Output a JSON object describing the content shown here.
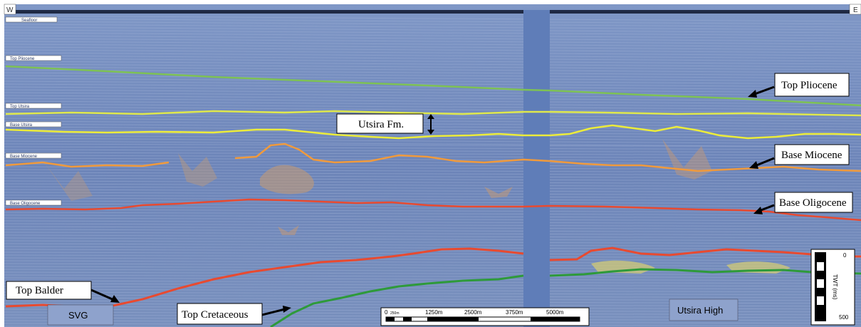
{
  "orientation": {
    "west": "W",
    "east": "E"
  },
  "horizon_tags": [
    "Seafloor",
    "Top Pliocene",
    "Top Utsira",
    "Base Utsira",
    "Base Miocene",
    "Base Oligocene"
  ],
  "callouts": {
    "top_pliocene": "Top Pliocene",
    "utsira_fm": "Utsira Fm.",
    "base_miocene": "Base Miocene",
    "base_oligocene": "Base Oligocene",
    "top_balder": "Top Balder",
    "top_cretaceous": "Top Cretaceous"
  },
  "area_labels": {
    "svg": "SVG",
    "utsira_high": "Utsira High"
  },
  "distance_scale": {
    "ticks": [
      "0",
      "250m",
      "1250m",
      "2500m",
      "3750m",
      "5000m"
    ]
  },
  "twt_scale": {
    "top": "0",
    "bottom": "500",
    "label": "TWT (ms)"
  },
  "colors": {
    "seismic_bg": "#6f86b9",
    "green_horizon": "#7ec254",
    "yellow_horizon": "#ecec3a",
    "orange_horizon": "#f09a3c",
    "red_horizon": "#e84a30",
    "dark_green_horizon": "#2e9a3a",
    "gap": "#5f7db8"
  }
}
